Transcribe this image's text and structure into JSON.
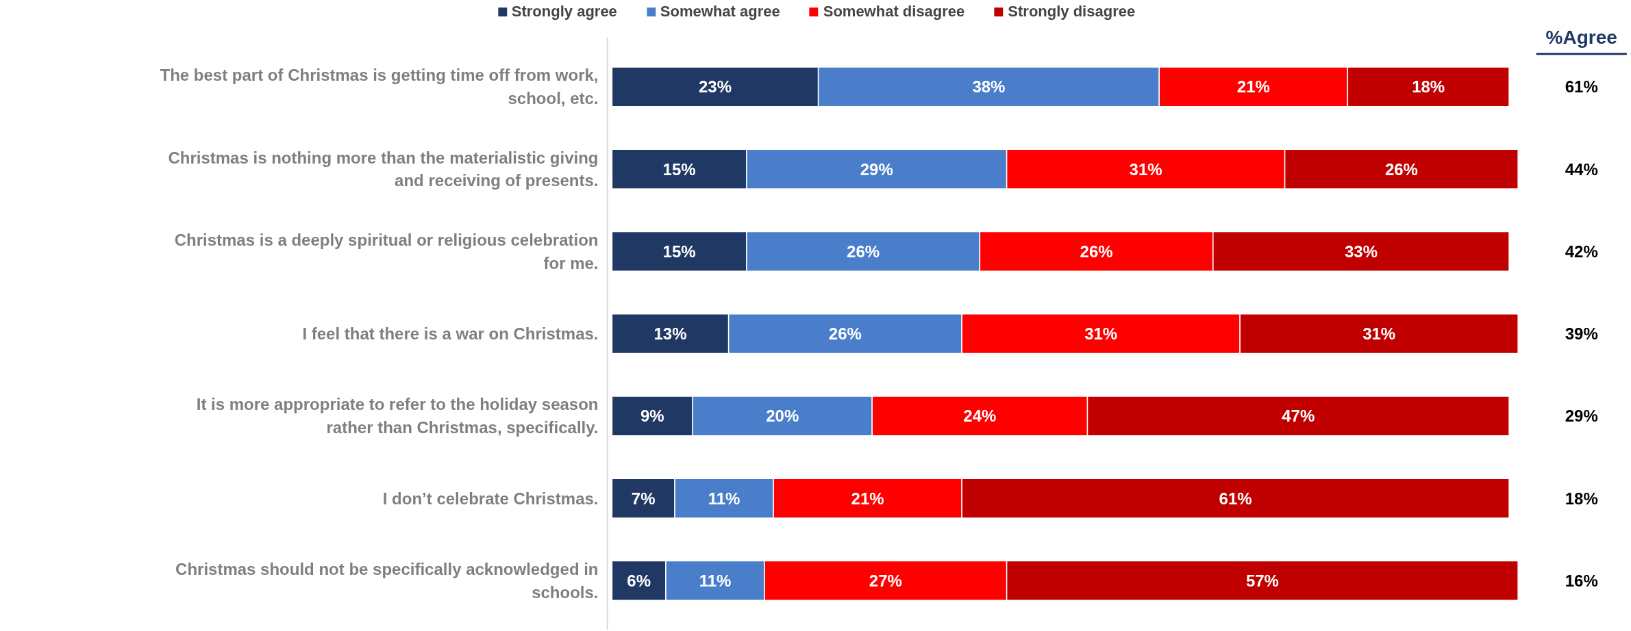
{
  "chart_data": {
    "type": "bar",
    "orientation": "horizontal",
    "stacked": true,
    "legend": "top",
    "grid": false,
    "categories": [
      "The best part of Christmas is getting time off from work, school, etc.",
      "Christmas is nothing more than the materialistic giving and receiving of presents.",
      "Christmas is a deeply spiritual or religious celebration for me.",
      "I feel that there is a war on Christmas.",
      "It is more appropriate to refer to the holiday season rather than Christmas, specifically.",
      "I don’t celebrate Christmas.",
      "Christmas should not be specifically acknowledged in schools."
    ],
    "series": [
      {
        "name": "Strongly agree",
        "color": "#1f3864",
        "values": [
          23,
          15,
          15,
          13,
          9,
          7,
          6
        ],
        "value_labels": [
          "23%",
          "15%",
          "15%",
          "13%",
          "9%",
          "7%",
          "6%"
        ]
      },
      {
        "name": "Somewhat agree",
        "color": "#4a7ecb",
        "values": [
          38,
          29,
          26,
          26,
          20,
          11,
          11
        ],
        "value_labels": [
          "38%",
          "29%",
          "26%",
          "26%",
          "20%",
          "11%",
          "11%"
        ]
      },
      {
        "name": "Somewhat disagree",
        "color": "#ff0000",
        "values": [
          21,
          31,
          26,
          31,
          24,
          21,
          27
        ],
        "value_labels": [
          "21%",
          "31%",
          "26%",
          "31%",
          "24%",
          "21%",
          "27%"
        ]
      },
      {
        "name": "Strongly disagree",
        "color": "#c00000",
        "values": [
          18,
          26,
          33,
          31,
          47,
          61,
          57
        ],
        "value_labels": [
          "18%",
          "26%",
          "33%",
          "31%",
          "47%",
          "61%",
          "57%"
        ]
      }
    ],
    "annotations": [
      "%Agree",
      "61%",
      "44%",
      "42%",
      "39%",
      "29%",
      "18%",
      "16%"
    ]
  }
}
